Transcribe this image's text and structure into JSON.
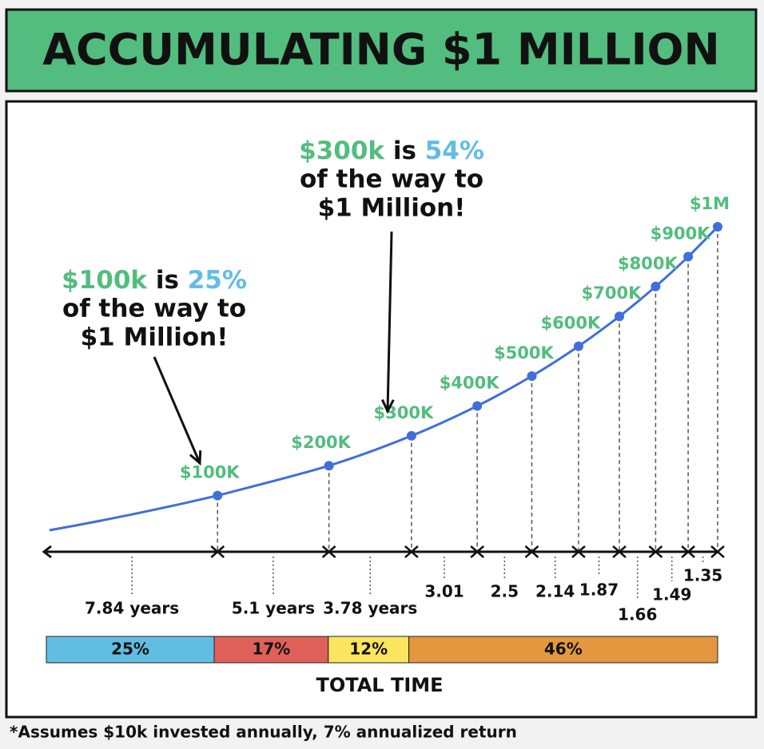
{
  "title": "ACCUMULATING $1 MILLION",
  "footnote": "*Assumes $10k invested annually, 7% annualized return",
  "annotations": [
    {
      "amount": "$100k",
      "is": "is",
      "share": "25%",
      "line2": "of the way to",
      "line3": "$1 Million!"
    },
    {
      "amount": "$300k",
      "is": "is",
      "share": "54%",
      "line2": "of the way to",
      "line3": "$1 Million!"
    }
  ],
  "chart_data": {
    "type": "line",
    "color": "#3f6fdc",
    "label_color": "#52bd7e",
    "series": [
      {
        "values": [
          100000,
          200000,
          300000,
          400000,
          500000,
          600000,
          700000,
          800000,
          900000,
          1000000
        ],
        "value_labels": [
          "$100K",
          "$200K",
          "$300K",
          "$400K",
          "$500K",
          "$600K",
          "$700K",
          "$800K",
          "$900K",
          "$1M"
        ]
      }
    ],
    "intervals": [
      {
        "value": 7.84,
        "label": "7.84 years"
      },
      {
        "value": 5.1,
        "label": "5.1 years"
      },
      {
        "value": 3.78,
        "label": "3.78 years"
      },
      3.01,
      2.5,
      2.14,
      1.87,
      1.66,
      1.49,
      1.35
    ],
    "shares": [
      {
        "value": 25,
        "label": "25%",
        "color": "#62bde3"
      },
      {
        "value": 17,
        "label": "17%",
        "color": "#e0605a"
      },
      {
        "value": 12,
        "label": "12%",
        "color": "#fbe55e"
      },
      {
        "value": 46,
        "label": "46%",
        "color": "#e3983f"
      }
    ],
    "shares_title": "TOTAL TIME"
  }
}
